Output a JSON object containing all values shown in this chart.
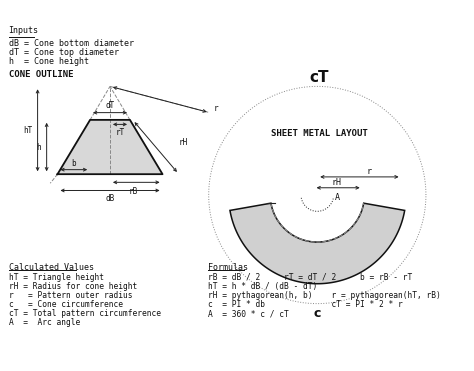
{
  "bg_color": "#ffffff",
  "title": "cT",
  "sheet_metal_label": "SHEET METAL LAYOUT",
  "inputs_title": "Inputs",
  "inputs": [
    "dB = Cone bottom diameter",
    "dT = Cone top diameter",
    "h  = Cone height"
  ],
  "cone_outline_title": "CONE OUTLINE",
  "calc_title": "Calculated Values",
  "calc_values": [
    "hT = Triangle height",
    "rH = Radius for cone height",
    "r   = Pattern outer radius",
    "c   = Cone circumference",
    "cT = Total pattern circumference",
    "A  =  Arc angle"
  ],
  "formulas_title": "Formulas",
  "formulas": [
    "rB = dB / 2     rT = dT / 2     b = rB - rT",
    "hT = h * dB / (dB - dT)",
    "rH = pythagorean(h, b)    r = pythagorean(hT, rB)",
    "c  = PI * db              cT = PI * 2 * r",
    "A  = 360 * c / cT"
  ],
  "cone_fill": "#d8d8d8",
  "cone_outline_color": "#111111",
  "annulus_fill": "#d0d0d0",
  "dashed_color": "#888888",
  "arrow_color": "#222222",
  "text_color": "#111111"
}
